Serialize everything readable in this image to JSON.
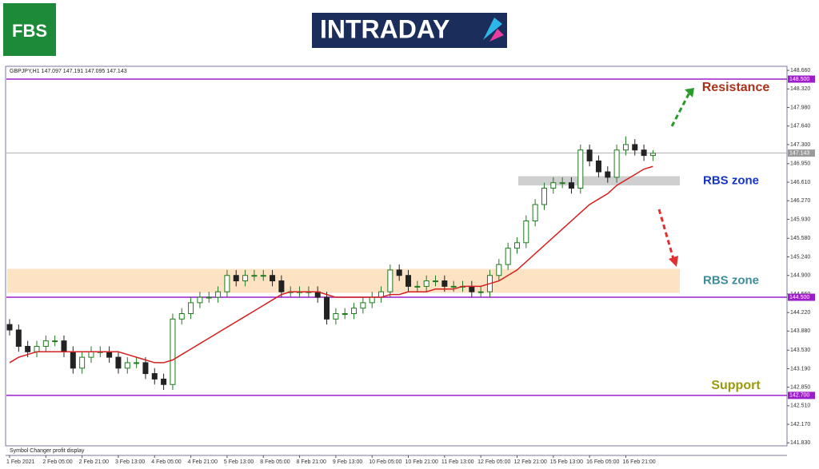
{
  "header": {
    "logo": "FBS",
    "brand": "INTRADAY"
  },
  "chart_data": {
    "type": "candlestick",
    "title": "GBPJPY,H1  147.097 147.191 147.095 147.143",
    "footer_note": "Symbol Changer profit display",
    "categories": [
      "1 Feb 2021",
      null,
      null,
      null,
      "2 Feb 05:00",
      null,
      null,
      null,
      "2 Feb 21:00",
      null,
      null,
      null,
      "3 Feb 13:00",
      null,
      null,
      null,
      "4 Feb 05:00",
      null,
      null,
      null,
      "4 Feb 21:00",
      null,
      null,
      null,
      "5 Feb 13:00",
      null,
      null,
      null,
      "8 Feb 05:00",
      null,
      null,
      null,
      "8 Feb 21:00",
      null,
      null,
      null,
      "9 Feb 13:00",
      null,
      null,
      null,
      "10 Feb 05:00",
      null,
      null,
      null,
      "10 Feb 21:00",
      null,
      null,
      null,
      "11 Feb 13:00",
      null,
      null,
      null,
      "12 Feb 05:00",
      null,
      null,
      null,
      "12 Feb 21:00",
      null,
      null,
      null,
      "15 Feb 13:00",
      null,
      null,
      null,
      "16 Feb 05:00",
      null,
      null,
      null,
      "16 Feb 21:00",
      null,
      null,
      null
    ],
    "open": [
      144.0,
      143.9,
      143.6,
      143.5,
      143.6,
      143.7,
      143.7,
      143.5,
      143.2,
      143.4,
      143.5,
      143.5,
      143.4,
      143.2,
      143.3,
      143.3,
      143.1,
      143.0,
      142.9,
      144.1,
      144.2,
      144.4,
      144.5,
      144.5,
      144.6,
      144.9,
      144.8,
      144.9,
      144.9,
      144.9,
      144.8,
      144.6,
      144.6,
      144.6,
      144.6,
      144.5,
      144.1,
      144.2,
      144.2,
      144.3,
      144.4,
      144.5,
      144.6,
      145.0,
      144.9,
      144.7,
      144.7,
      144.8,
      144.8,
      144.7,
      144.7,
      144.7,
      144.6,
      144.6,
      144.9,
      145.1,
      145.4,
      145.5,
      145.9,
      146.2,
      146.5,
      146.6,
      146.6,
      146.5,
      147.2,
      147.0,
      146.8,
      146.7,
      147.2,
      147.3,
      147.2,
      147.1
    ],
    "high": [
      144.1,
      144.0,
      143.7,
      143.7,
      143.8,
      143.8,
      143.8,
      143.6,
      143.5,
      143.6,
      143.6,
      143.6,
      143.5,
      143.4,
      143.4,
      143.4,
      143.2,
      143.1,
      144.2,
      144.3,
      144.5,
      144.6,
      144.6,
      144.7,
      145.0,
      145.0,
      145.0,
      145.0,
      145.0,
      145.0,
      144.9,
      144.7,
      144.7,
      144.7,
      144.7,
      144.6,
      144.3,
      144.3,
      144.4,
      144.5,
      144.6,
      144.7,
      145.1,
      145.1,
      145.0,
      144.8,
      144.9,
      144.9,
      144.9,
      144.8,
      144.8,
      144.8,
      144.7,
      145.0,
      145.2,
      145.5,
      145.6,
      146.0,
      146.3,
      146.6,
      146.7,
      146.7,
      146.7,
      147.3,
      147.3,
      147.1,
      146.9,
      147.3,
      147.45,
      147.4,
      147.3,
      147.2
    ],
    "low": [
      143.8,
      143.5,
      143.4,
      143.4,
      143.5,
      143.6,
      143.4,
      143.1,
      143.1,
      143.3,
      143.4,
      143.3,
      143.1,
      143.1,
      143.2,
      143.0,
      142.9,
      142.8,
      142.8,
      144.0,
      144.1,
      144.3,
      144.4,
      144.4,
      144.5,
      144.7,
      144.7,
      144.8,
      144.8,
      144.7,
      144.5,
      144.5,
      144.5,
      144.5,
      144.4,
      144.0,
      144.0,
      144.1,
      144.1,
      144.2,
      144.3,
      144.4,
      144.5,
      144.8,
      144.6,
      144.6,
      144.6,
      144.7,
      144.6,
      144.6,
      144.6,
      144.5,
      144.5,
      144.5,
      144.8,
      145.0,
      145.3,
      145.4,
      145.8,
      146.1,
      146.4,
      146.5,
      146.4,
      146.4,
      146.9,
      146.7,
      146.6,
      146.6,
      147.1,
      147.1,
      147.0,
      147.0
    ],
    "close": [
      143.9,
      143.6,
      143.5,
      143.6,
      143.7,
      143.7,
      143.5,
      143.2,
      143.4,
      143.5,
      143.5,
      143.4,
      143.2,
      143.3,
      143.3,
      143.1,
      143.0,
      142.9,
      144.1,
      144.2,
      144.4,
      144.5,
      144.5,
      144.6,
      144.9,
      144.8,
      144.9,
      144.9,
      144.9,
      144.8,
      144.6,
      144.6,
      144.6,
      144.6,
      144.5,
      144.1,
      144.2,
      144.2,
      144.3,
      144.4,
      144.5,
      144.6,
      145.0,
      144.9,
      144.7,
      144.7,
      144.8,
      144.8,
      144.7,
      144.7,
      144.7,
      144.6,
      144.6,
      144.9,
      145.1,
      145.4,
      145.5,
      145.9,
      146.2,
      146.5,
      146.6,
      146.6,
      146.5,
      147.2,
      147.0,
      146.8,
      146.7,
      147.2,
      147.3,
      147.2,
      147.1,
      147.14
    ],
    "up_color": "#1f7a1f",
    "down_color": "#222222",
    "moving_average": {
      "color": "#d42020",
      "values": [
        143.3,
        143.4,
        143.45,
        143.5,
        143.5,
        143.5,
        143.5,
        143.5,
        143.5,
        143.5,
        143.5,
        143.5,
        143.5,
        143.45,
        143.4,
        143.35,
        143.3,
        143.3,
        143.35,
        143.45,
        143.55,
        143.65,
        143.75,
        143.85,
        143.95,
        144.05,
        144.15,
        144.25,
        144.35,
        144.45,
        144.55,
        144.6,
        144.6,
        144.6,
        144.6,
        144.55,
        144.5,
        144.5,
        144.5,
        144.5,
        144.5,
        144.5,
        144.55,
        144.55,
        144.6,
        144.6,
        144.6,
        144.65,
        144.65,
        144.65,
        144.7,
        144.7,
        144.7,
        144.75,
        144.8,
        144.9,
        145.0,
        145.15,
        145.3,
        145.45,
        145.6,
        145.75,
        145.9,
        146.05,
        146.2,
        146.3,
        146.4,
        146.55,
        146.65,
        146.75,
        146.85,
        146.9
      ]
    },
    "ylim": [
      141.79,
      148.72
    ],
    "yticks": [
      {
        "value": 148.66,
        "label": "148.660"
      },
      {
        "value": 148.32,
        "label": "148.320"
      },
      {
        "value": 147.98,
        "label": "147.980"
      },
      {
        "value": 147.64,
        "label": "147.640"
      },
      {
        "value": 147.3,
        "label": "147.300"
      },
      {
        "value": 146.95,
        "label": "146.950"
      },
      {
        "value": 146.61,
        "label": "146.610"
      },
      {
        "value": 146.27,
        "label": "146.270"
      },
      {
        "value": 145.93,
        "label": "145.930"
      },
      {
        "value": 145.58,
        "label": "145.580"
      },
      {
        "value": 145.24,
        "label": "145.240"
      },
      {
        "value": 144.9,
        "label": "144.900"
      },
      {
        "value": 144.56,
        "label": "144.560"
      },
      {
        "value": 144.22,
        "label": "144.220"
      },
      {
        "value": 143.88,
        "label": "143.880"
      },
      {
        "value": 143.53,
        "label": "143.530"
      },
      {
        "value": 143.19,
        "label": "143.190"
      },
      {
        "value": 142.85,
        "label": "142.850"
      },
      {
        "value": 142.51,
        "label": "142.510"
      },
      {
        "value": 142.17,
        "label": "142.170"
      },
      {
        "value": 141.83,
        "label": "141.830"
      }
    ],
    "levels": [
      {
        "value": 148.5,
        "label": "148.500",
        "color": "#9b1fc9"
      },
      {
        "value": 147.143,
        "label": "147.143",
        "color": "#9a9a9a"
      },
      {
        "value": 144.5,
        "label": "144.500",
        "color": "#9b1fc9"
      },
      {
        "value": 142.7,
        "label": "142.700",
        "color": "#9b1fc9"
      }
    ],
    "zones": [
      {
        "label": "RBS zone",
        "range": [
          146.55,
          146.72
        ],
        "color": "#cfcfcf",
        "label_color": "#1434c8"
      },
      {
        "label": "RBS zone",
        "range": [
          144.58,
          145.02
        ],
        "color": "#fde2c4",
        "label_color": "#3c8c9a"
      }
    ],
    "annotations": [
      {
        "text": "Resistance",
        "color": "#a8321c"
      },
      {
        "text": "Support",
        "color": "#9a9a10"
      }
    ]
  }
}
